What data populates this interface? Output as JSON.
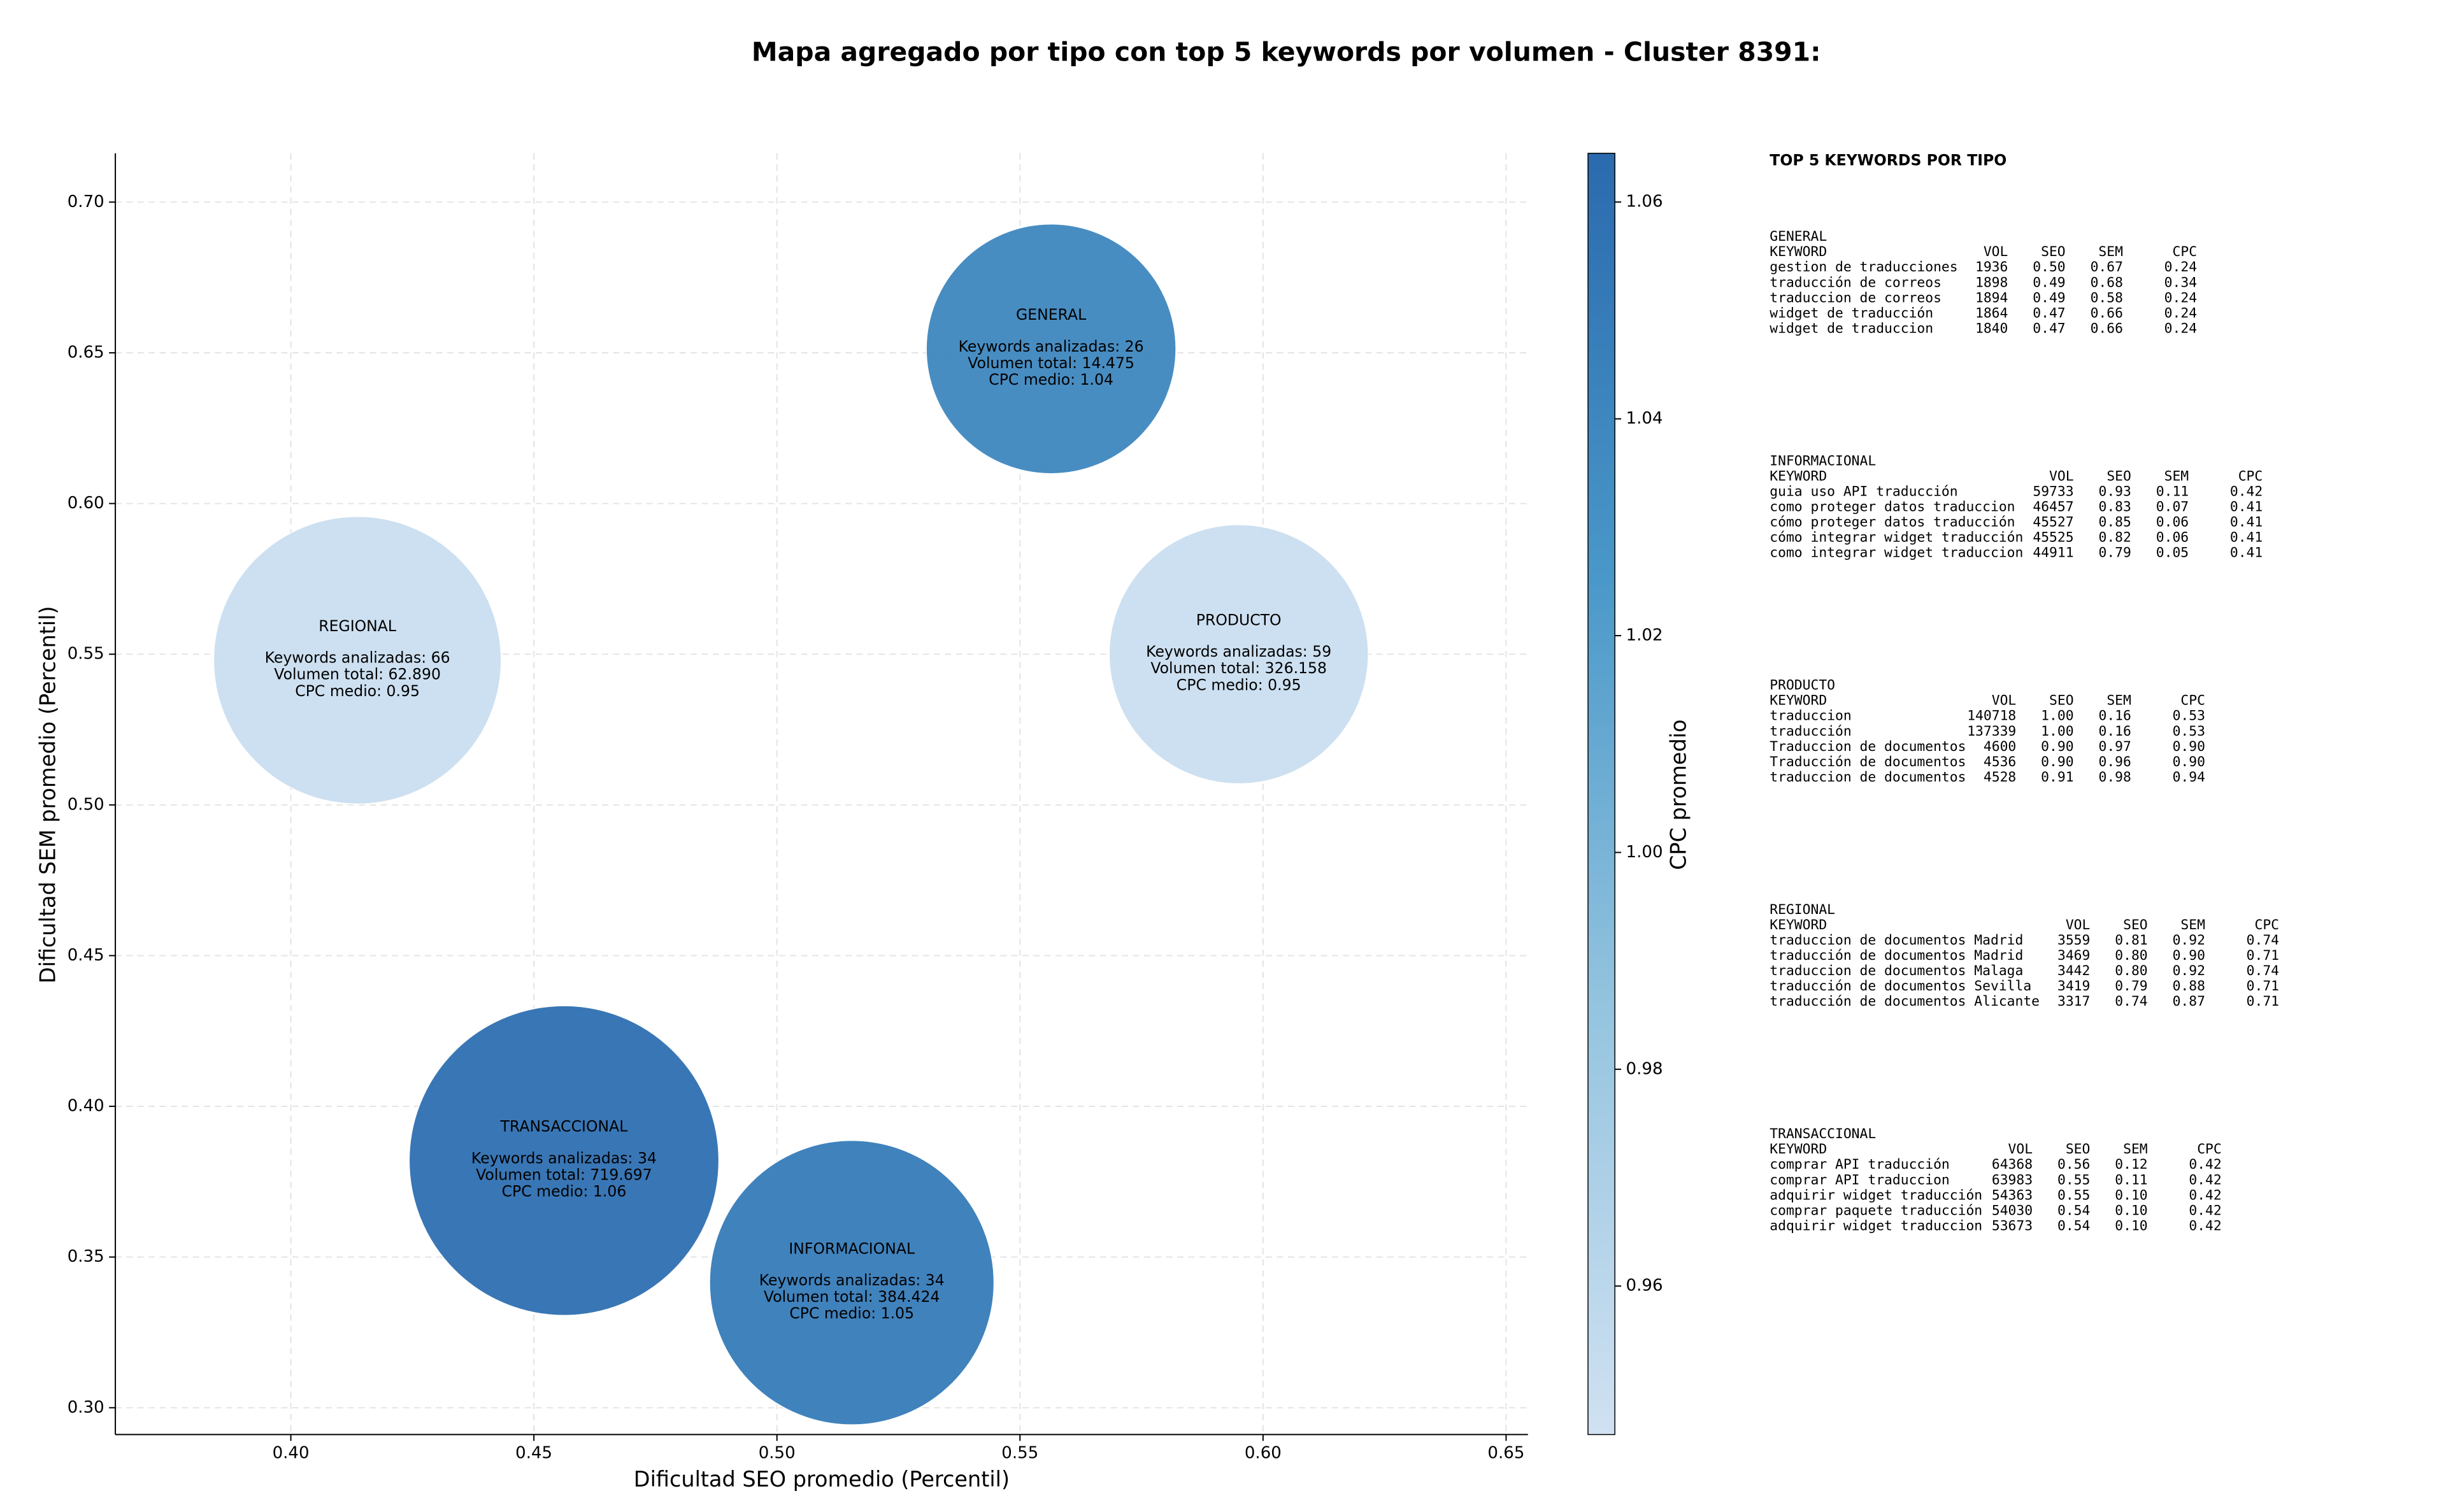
{
  "chart_data": {
    "type": "scatter",
    "title": "Mapa agregado por tipo con top 5 keywords por volumen - Cluster 8391:",
    "x_label": "Dificultad SEO promedio (Percentil)",
    "y_label": "Dificultad SEM promedio (Percentil)",
    "colorbar_label": "CPC promedio",
    "xlim": [
      0.3639,
      0.6545
    ],
    "ylim": [
      0.2911,
      0.7162
    ],
    "clim": [
      0.9463,
      1.0645
    ],
    "xticks": [
      {
        "value": 0.4,
        "label": "0.40"
      },
      {
        "value": 0.45,
        "label": "0.45"
      },
      {
        "value": 0.5,
        "label": "0.50"
      },
      {
        "value": 0.55,
        "label": "0.55"
      },
      {
        "value": 0.6,
        "label": "0.60"
      },
      {
        "value": 0.65,
        "label": "0.65"
      }
    ],
    "yticks": [
      {
        "value": 0.3,
        "label": "0.30"
      },
      {
        "value": 0.35,
        "label": "0.35"
      },
      {
        "value": 0.4,
        "label": "0.40"
      },
      {
        "value": 0.45,
        "label": "0.45"
      },
      {
        "value": 0.5,
        "label": "0.50"
      },
      {
        "value": 0.55,
        "label": "0.55"
      },
      {
        "value": 0.6,
        "label": "0.60"
      },
      {
        "value": 0.65,
        "label": "0.65"
      },
      {
        "value": 0.7,
        "label": "0.70"
      }
    ],
    "cticks": [
      0.96,
      0.98,
      {
        "value": 1,
        "label": "1.00"
      },
      1.02,
      1.04,
      1.06
    ],
    "colormap": [
      "#d0e1f2",
      "#94c4df",
      "#4a98c9",
      "#2a6aae"
    ],
    "grid": true,
    "point_labels": [
      "GENERAL",
      "REGIONAL",
      "PRODUCTO",
      "TRANSACCIONAL",
      "INFORMACIONAL"
    ],
    "x": [
      0.5564,
      0.4137,
      0.595,
      0.4562,
      0.5154
    ],
    "values": [
      0.6513,
      0.548,
      0.55,
      0.382,
      0.3415
    ],
    "sizes": [
      79,
      91,
      82,
      98,
      90
    ],
    "cpc": [
      1.04,
      0.95,
      0.95,
      1.06,
      1.05
    ],
    "annotations": [
      [
        "Keywords analizadas: 26",
        "Volumen total: 14.475",
        "CPC medio: 1.04"
      ],
      [
        "Keywords analizadas: 66",
        "Volumen total: 62.890",
        "CPC medio: 0.95"
      ],
      [
        "Keywords analizadas: 59",
        "Volumen total: 326.158",
        "CPC medio: 0.95"
      ],
      [
        "Keywords analizadas: 34",
        "Volumen total: 719.697",
        "CPC medio: 1.06"
      ],
      [
        "Keywords analizadas: 34",
        "Volumen total: 384.424",
        "CPC medio: 1.05"
      ]
    ],
    "panel": {
      "title": "TOP 5 KEYWORDS POR TIPO",
      "header": [
        "KEYWORD",
        "VOL",
        "SEO",
        "SEM",
        "CPC"
      ],
      "groups": [
        {
          "name": "GENERAL",
          "rows": [
            [
              "gestion de traducciones",
              "1936",
              "0.50",
              "0.67",
              "0.24"
            ],
            [
              "traducción de correos",
              "1898",
              "0.49",
              "0.68",
              "0.34"
            ],
            [
              "traduccion de correos",
              "1894",
              "0.49",
              "0.58",
              "0.24"
            ],
            [
              "widget de traducción",
              "1864",
              "0.47",
              "0.66",
              "0.24"
            ],
            [
              "widget de traduccion",
              "1840",
              "0.47",
              "0.66",
              "0.24"
            ]
          ]
        },
        {
          "name": "INFORMACIONAL",
          "rows": [
            [
              "guia uso API traducción",
              "59733",
              "0.93",
              "0.11",
              "0.42"
            ],
            [
              "como proteger datos traduccion",
              "46457",
              "0.83",
              "0.07",
              "0.41"
            ],
            [
              "cómo proteger datos traducción",
              "45527",
              "0.85",
              "0.06",
              "0.41"
            ],
            [
              "cómo integrar widget traducción",
              "45525",
              "0.82",
              "0.06",
              "0.41"
            ],
            [
              "como integrar widget traduccion",
              "44911",
              "0.79",
              "0.05",
              "0.41"
            ]
          ]
        },
        {
          "name": "PRODUCTO",
          "rows": [
            [
              "traduccion",
              "140718",
              "1.00",
              "0.16",
              "0.53"
            ],
            [
              "traducción",
              "137339",
              "1.00",
              "0.16",
              "0.53"
            ],
            [
              "Traduccion de documentos",
              "4600",
              "0.90",
              "0.97",
              "0.90"
            ],
            [
              "Traducción de documentos",
              "4536",
              "0.90",
              "0.96",
              "0.90"
            ],
            [
              "traduccion de documentos",
              "4528",
              "0.91",
              "0.98",
              "0.94"
            ]
          ]
        },
        {
          "name": "REGIONAL",
          "rows": [
            [
              "traduccion de documentos Madrid",
              "3559",
              "0.81",
              "0.92",
              "0.74"
            ],
            [
              "traducción de documentos Madrid",
              "3469",
              "0.80",
              "0.90",
              "0.71"
            ],
            [
              "traduccion de documentos Malaga",
              "3442",
              "0.80",
              "0.92",
              "0.74"
            ],
            [
              "traducción de documentos Sevilla",
              "3419",
              "0.79",
              "0.88",
              "0.71"
            ],
            [
              "traducción de documentos Alicante",
              "3317",
              "0.74",
              "0.87",
              "0.71"
            ]
          ]
        },
        {
          "name": "TRANSACCIONAL",
          "rows": [
            [
              "comprar API traducción",
              "64368",
              "0.56",
              "0.12",
              "0.42"
            ],
            [
              "comprar API traduccion",
              "63983",
              "0.55",
              "0.11",
              "0.42"
            ],
            [
              "adquirir widget traducción",
              "54363",
              "0.55",
              "0.10",
              "0.42"
            ],
            [
              "comprar paquete traducción",
              "54030",
              "0.54",
              "0.10",
              "0.42"
            ],
            [
              "adquirir widget traduccion",
              "53673",
              "0.54",
              "0.10",
              "0.42"
            ]
          ]
        }
      ]
    }
  }
}
